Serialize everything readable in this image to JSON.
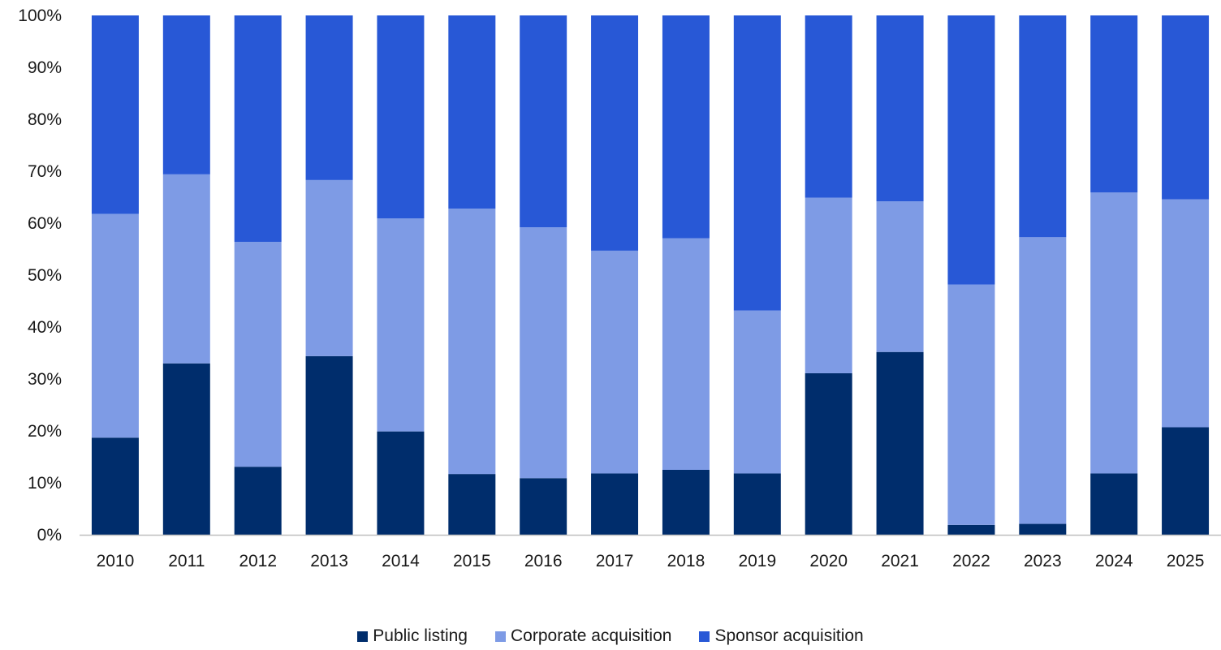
{
  "chart_data": {
    "type": "bar",
    "stacked": true,
    "categories": [
      "2010",
      "2011",
      "2012",
      "2013",
      "2014",
      "2015",
      "2016",
      "2017",
      "2018",
      "2019",
      "2020",
      "2021",
      "2022",
      "2023",
      "2024",
      "2025"
    ],
    "series": [
      {
        "name": "Public listing",
        "color": "#002d6c",
        "values": [
          18.7,
          33.0,
          13.1,
          34.4,
          19.9,
          11.7,
          10.9,
          11.8,
          12.5,
          11.8,
          31.1,
          35.2,
          1.9,
          2.1,
          11.8,
          20.7
        ]
      },
      {
        "name": "Corporate acquisition",
        "color": "#7e9be5",
        "values": [
          43.1,
          36.4,
          43.3,
          33.9,
          41.0,
          51.1,
          48.3,
          42.9,
          44.6,
          31.4,
          33.8,
          29.0,
          46.3,
          55.2,
          54.1,
          43.9
        ]
      },
      {
        "name": "Sponsor acquisition",
        "color": "#2858d6",
        "values": [
          38.2,
          30.6,
          43.6,
          31.7,
          39.1,
          37.2,
          40.8,
          45.3,
          42.9,
          56.8,
          35.1,
          35.8,
          51.8,
          42.7,
          34.1,
          35.4
        ]
      }
    ],
    "y_ticks": [
      "0%",
      "10%",
      "20%",
      "30%",
      "40%",
      "50%",
      "60%",
      "70%",
      "80%",
      "90%",
      "100%"
    ],
    "ylim": [
      0,
      100
    ],
    "grid": false,
    "legend_position": "bottom-center"
  }
}
